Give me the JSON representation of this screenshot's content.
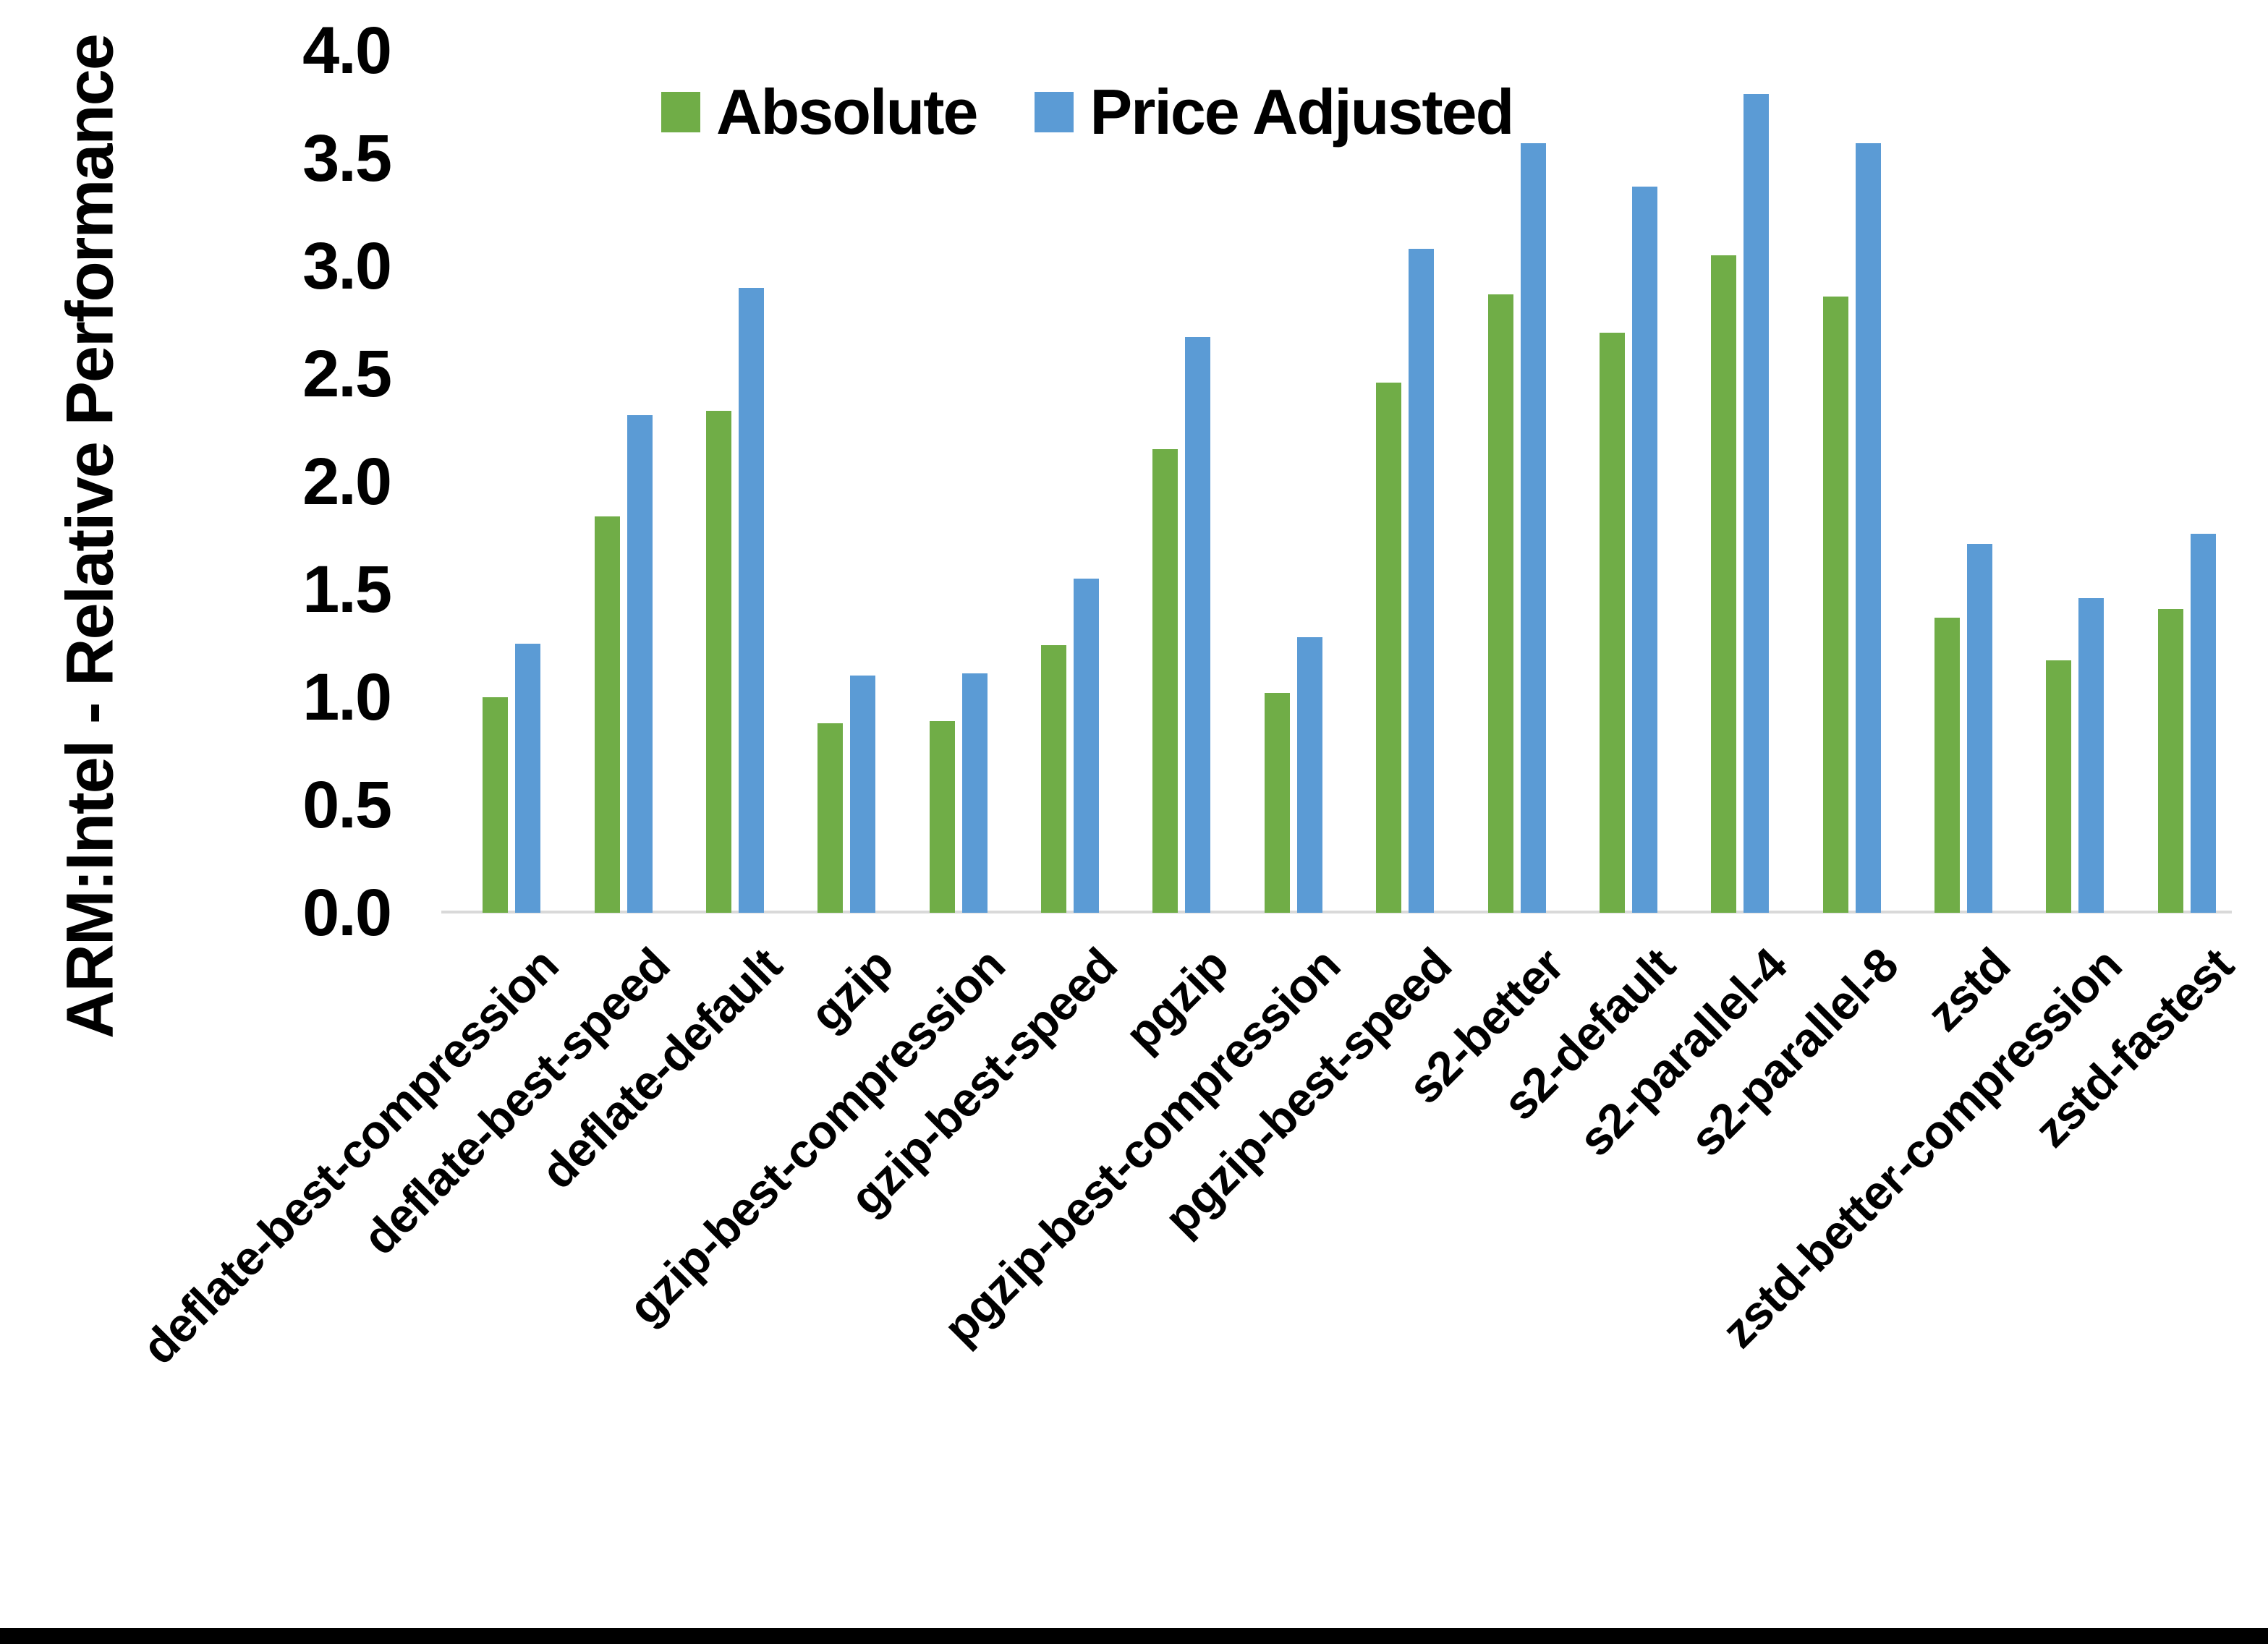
{
  "chart_data": {
    "type": "bar",
    "title": "",
    "y_axis_title": "ARM:Intel - Relative Performance",
    "categories": [
      "deflate-best-compression",
      "deflate-best-speed",
      "deflate-default",
      "gzip",
      "gzip-best-compression",
      "gzip-best-speed",
      "pgzip",
      "pgzip-best-compression",
      "pgzip-best-speed",
      "s2-better",
      "s2-default",
      "s2-parallel-4",
      "s2-parallel-8",
      "zstd",
      "zstd-better-compression",
      "zstd-fastest"
    ],
    "series": [
      {
        "name": "Absolute",
        "color": "#70AD47",
        "values": [
          1.0,
          1.84,
          2.33,
          0.88,
          0.89,
          1.24,
          2.15,
          1.02,
          2.46,
          2.87,
          2.69,
          3.05,
          2.86,
          1.37,
          1.17,
          1.41
        ]
      },
      {
        "name": "Price Adjusted",
        "color": "#5B9BD5",
        "values": [
          1.25,
          2.31,
          2.9,
          1.1,
          1.11,
          1.55,
          2.67,
          1.28,
          3.08,
          3.57,
          3.37,
          3.8,
          3.57,
          1.71,
          1.46,
          1.76
        ]
      }
    ],
    "ylim": [
      0.0,
      4.0
    ],
    "ytick_step": 0.5,
    "yticks": [
      "0.0",
      "0.5",
      "1.0",
      "1.5",
      "2.0",
      "2.5",
      "3.0",
      "3.5",
      "4.0"
    ],
    "grid": false,
    "legend_position": "top"
  },
  "colors": {
    "absolute": "#70AD47",
    "price_adjusted": "#5B9BD5",
    "axis_line": "#D9D9D9",
    "text": "#000000",
    "border_bottom": "#000000",
    "background": "#FFFFFF"
  }
}
